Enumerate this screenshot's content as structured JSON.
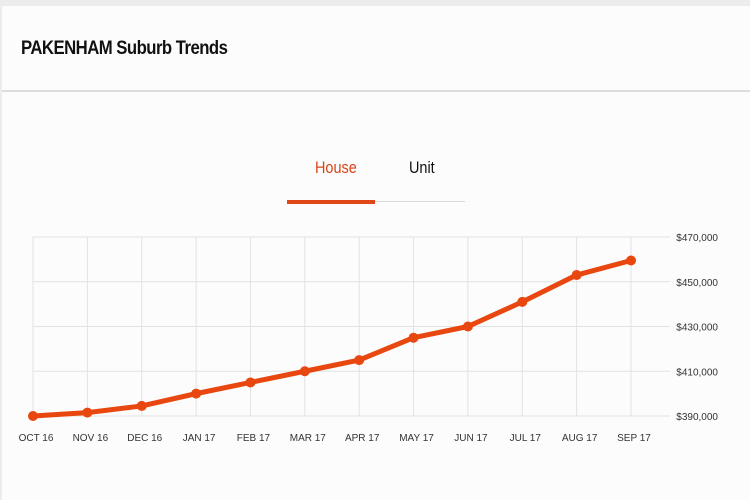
{
  "header": {
    "title": "PAKENHAM Suburb Trends"
  },
  "tabs": [
    {
      "label": "House",
      "active": true
    },
    {
      "label": "Unit",
      "active": false
    }
  ],
  "colors": {
    "accent": "#e8470f",
    "grid": "#e2e2e2"
  },
  "chart_data": {
    "type": "line",
    "title": "",
    "xlabel": "",
    "ylabel": "",
    "categories": [
      "OCT 16",
      "NOV 16",
      "DEC 16",
      "JAN 17",
      "FEB 17",
      "MAR 17",
      "APR 17",
      "MAY 17",
      "JUN 17",
      "JUL 17",
      "AUG 17",
      "SEP 17"
    ],
    "series": [
      {
        "name": "House",
        "values": [
          390000,
          391500,
          394500,
          400000,
          405000,
          410000,
          415000,
          425000,
          430000,
          441000,
          453000,
          459500
        ]
      }
    ],
    "ylim": [
      390000,
      470000
    ],
    "yticks": [
      390000,
      410000,
      430000,
      450000,
      470000
    ],
    "ytick_labels": [
      "$390,000",
      "$410,000",
      "$430,000",
      "$450,000",
      "$470,000"
    ],
    "y_axis_position": "right",
    "grid": true
  }
}
